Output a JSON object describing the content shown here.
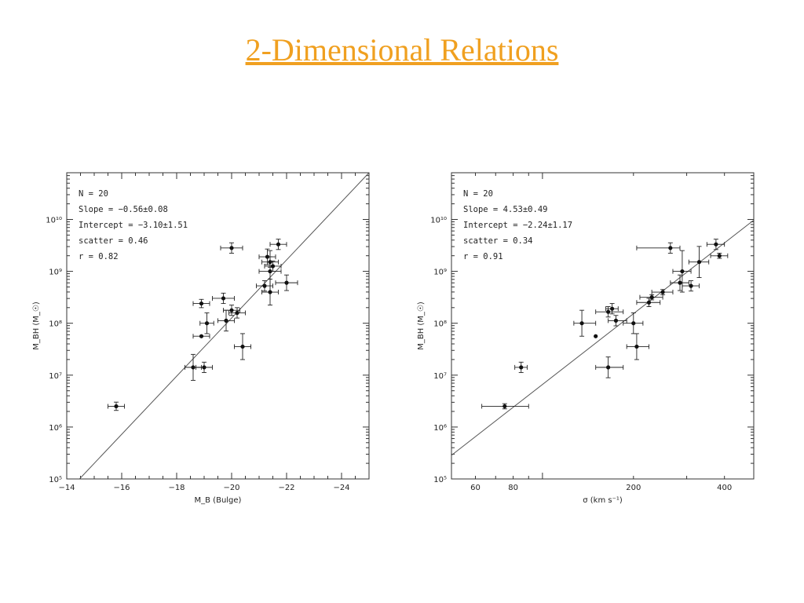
{
  "slide": {
    "title": "2-Dimensional Relations"
  },
  "chart_data": [
    {
      "type": "scatter",
      "xlabel": "M_B (Bulge)",
      "ylabel": "M_BH (M_☉)",
      "xlim": [
        -14,
        -25
      ],
      "ylim_log10": [
        5,
        10.9
      ],
      "y_log": true,
      "x_ticks": [
        -14,
        -16,
        -18,
        -20,
        -22,
        -24
      ],
      "x_tick_labels": [
        "−14",
        "−16",
        "−18",
        "−20",
        "−22",
        "−24"
      ],
      "y_ticks_log10": [
        5,
        6,
        7,
        8,
        9,
        10
      ],
      "y_tick_labels": [
        "10⁵",
        "10⁶",
        "10⁷",
        "10⁸",
        "10⁹",
        "10¹⁰"
      ],
      "annotations": [
        "N = 20",
        "Slope = −0.56±0.08",
        "Intercept = −3.10±1.51",
        "scatter = 0.46",
        "r = 0.82"
      ],
      "fit": {
        "slope": -0.56,
        "intercept": -3.1
      },
      "points": [
        {
          "x": -15.8,
          "y": 6.4,
          "xerr": 0.3,
          "yerr": 0.08
        },
        {
          "x": -18.6,
          "y": 7.15,
          "xerr": 0.3,
          "yerr": 0.25
        },
        {
          "x": -19.0,
          "y": 7.15,
          "xerr": 0.3,
          "yerr": 0.1
        },
        {
          "x": -18.9,
          "y": 7.75,
          "xerr": 0.3,
          "yerr": 0.0
        },
        {
          "x": -18.9,
          "y": 8.38,
          "xerr": 0.3,
          "yerr": 0.08
        },
        {
          "x": -19.1,
          "y": 8.0,
          "xerr": 0.25,
          "yerr": 0.2
        },
        {
          "x": -19.7,
          "y": 8.48,
          "xerr": 0.4,
          "yerr": 0.1
        },
        {
          "x": -19.8,
          "y": 8.05,
          "xerr": 0.3,
          "yerr": 0.2
        },
        {
          "x": -20.0,
          "y": 8.25,
          "xerr": 0.3,
          "yerr": 0.1
        },
        {
          "x": -20.2,
          "y": 8.2,
          "xerr": 0.3,
          "yerr": 0.1
        },
        {
          "x": -20.0,
          "y": 9.45,
          "xerr": 0.4,
          "yerr": 0.1
        },
        {
          "x": -20.4,
          "y": 7.55,
          "xerr": 0.3,
          "yerr": 0.25
        },
        {
          "x": -21.2,
          "y": 8.72,
          "xerr": 0.3,
          "yerr": 0.1
        },
        {
          "x": -21.4,
          "y": 9.0,
          "xerr": 0.4,
          "yerr": 0.4
        },
        {
          "x": -21.4,
          "y": 8.6,
          "xerr": 0.3,
          "yerr": 0.25
        },
        {
          "x": -21.3,
          "y": 9.28,
          "xerr": 0.3,
          "yerr": 0.15
        },
        {
          "x": -21.4,
          "y": 9.18,
          "xerr": 0.3,
          "yerr": 0.1
        },
        {
          "x": -21.7,
          "y": 9.52,
          "xerr": 0.3,
          "yerr": 0.1
        },
        {
          "x": -22.0,
          "y": 8.78,
          "xerr": 0.4,
          "yerr": 0.15
        },
        {
          "x": -21.5,
          "y": 9.1,
          "xerr": 0.3,
          "yerr": 0.1
        }
      ]
    },
    {
      "type": "scatter",
      "xlabel": "σ (km s⁻¹)",
      "ylabel": "M_BH (M_☉)",
      "x_log": true,
      "xlim": [
        50,
        500
      ],
      "ylim_log10": [
        5,
        10.9
      ],
      "y_log": true,
      "x_ticks": [
        60,
        80,
        200,
        400
      ],
      "x_tick_labels": [
        "60",
        "80",
        "200",
        "400"
      ],
      "y_ticks_log10": [
        5,
        6,
        7,
        8,
        9,
        10
      ],
      "y_tick_labels": [
        "10⁵",
        "10⁶",
        "10⁷",
        "10⁸",
        "10⁹",
        "10¹⁰"
      ],
      "annotations": [
        "N = 20",
        "Slope = 4.53±0.49",
        "Intercept = −2.24±1.17",
        "scatter = 0.34",
        "r = 0.91"
      ],
      "fit": {
        "slope": 4.53,
        "intercept": -2.24
      },
      "points": [
        {
          "x": 75,
          "y": 6.4,
          "xerr_lo": 12,
          "xerr_hi": 15,
          "yerr": 0.05
        },
        {
          "x": 85,
          "y": 7.15,
          "xerr_lo": 4,
          "xerr_hi": 4,
          "yerr": 0.1
        },
        {
          "x": 135,
          "y": 8.0,
          "xerr_lo": 8,
          "xerr_hi": 15,
          "yerr": 0.25
        },
        {
          "x": 150,
          "y": 7.75,
          "xerr_lo": 0,
          "xerr_hi": 0,
          "yerr": 0.0
        },
        {
          "x": 165,
          "y": 7.15,
          "xerr_lo": 15,
          "xerr_hi": 20,
          "yerr": 0.2
        },
        {
          "x": 165,
          "y": 8.22,
          "xerr_lo": 15,
          "xerr_hi": 20,
          "yerr": 0.1
        },
        {
          "x": 170,
          "y": 8.28,
          "xerr_lo": 8,
          "xerr_hi": 8,
          "yerr": 0.1
        },
        {
          "x": 175,
          "y": 8.05,
          "xerr_lo": 10,
          "xerr_hi": 15,
          "yerr": 0.1
        },
        {
          "x": 200,
          "y": 8.0,
          "xerr_lo": 15,
          "xerr_hi": 15,
          "yerr": 0.2
        },
        {
          "x": 205,
          "y": 7.55,
          "xerr_lo": 15,
          "xerr_hi": 20,
          "yerr": 0.25
        },
        {
          "x": 225,
          "y": 8.4,
          "xerr_lo": 20,
          "xerr_hi": 20,
          "yerr": 0.08
        },
        {
          "x": 230,
          "y": 8.5,
          "xerr_lo": 20,
          "xerr_hi": 20,
          "yerr": 0.05
        },
        {
          "x": 250,
          "y": 8.6,
          "xerr_lo": 20,
          "xerr_hi": 20,
          "yerr": 0.05
        },
        {
          "x": 265,
          "y": 9.45,
          "xerr_lo": 60,
          "xerr_hi": 20,
          "yerr": 0.1
        },
        {
          "x": 285,
          "y": 8.78,
          "xerr_lo": 20,
          "xerr_hi": 20,
          "yerr": 0.15
        },
        {
          "x": 290,
          "y": 9.0,
          "xerr_lo": 20,
          "xerr_hi": 20,
          "yerr": 0.4
        },
        {
          "x": 310,
          "y": 8.72,
          "xerr_lo": 20,
          "xerr_hi": 20,
          "yerr": 0.1
        },
        {
          "x": 330,
          "y": 9.18,
          "xerr_lo": 25,
          "xerr_hi": 25,
          "yerr": 0.3
        },
        {
          "x": 375,
          "y": 9.52,
          "xerr_lo": 25,
          "xerr_hi": 25,
          "yerr": 0.1
        },
        {
          "x": 385,
          "y": 9.3,
          "xerr_lo": 25,
          "xerr_hi": 25,
          "yerr": 0.05
        }
      ]
    }
  ]
}
